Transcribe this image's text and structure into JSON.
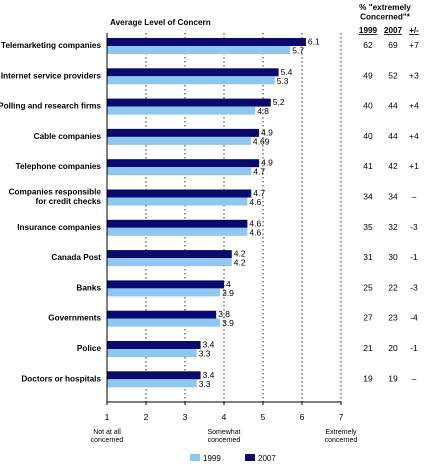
{
  "chart_data": {
    "type": "bar",
    "orientation": "horizontal",
    "title": "Average Level of Concern",
    "categories": [
      [
        "Telemarketing companies"
      ],
      [
        "Internet service providers"
      ],
      [
        "Polling and research firms"
      ],
      [
        "Cable companies"
      ],
      [
        "Telephone companies"
      ],
      [
        "Companies responsible",
        "for credit checks"
      ],
      [
        "Insurance companies"
      ],
      [
        "Canada Post"
      ],
      [
        "Banks"
      ],
      [
        "Governments"
      ],
      [
        "Police"
      ],
      [
        "Doctors or hospitals"
      ]
    ],
    "series": [
      {
        "name": "2007",
        "color": "#0a0a6e",
        "values": [
          6.1,
          5.4,
          5.2,
          4.9,
          4.9,
          4.7,
          4.6,
          4.2,
          4,
          3.8,
          3.4,
          3.4
        ],
        "labels": [
          "6.1",
          "5.4",
          "5.2",
          "4.9",
          "4.9",
          "4.7",
          "4.6",
          "4.2",
          "4",
          "3.8",
          "3.4",
          "3.4"
        ]
      },
      {
        "name": "1999",
        "color": "#8ec8f0",
        "values": [
          5.7,
          5.3,
          4.8,
          4.69,
          4.7,
          4.6,
          4.6,
          4.2,
          3.9,
          3.9,
          3.3,
          3.3
        ],
        "labels": [
          "5.7",
          "5.3",
          "4.8",
          "4.69",
          "4.7",
          "4.6",
          "4.6",
          "4.2",
          "3.9",
          "3.9",
          "3.3",
          "3.3"
        ]
      }
    ],
    "xlim": [
      1,
      7
    ],
    "xticks": [
      "1",
      "2",
      "3",
      "4",
      "5",
      "6",
      "7"
    ],
    "anchors": [
      {
        "at": 1,
        "lines": [
          "Not at all",
          "concerned"
        ]
      },
      {
        "at": 4,
        "lines": [
          "Somewhat",
          "concerned"
        ]
      },
      {
        "at": 7,
        "lines": [
          "Extremely",
          "concerned"
        ]
      }
    ],
    "legend": [
      "1999",
      "2007"
    ],
    "table": {
      "header_lines": [
        "% \"extremely",
        "Concerned\"*"
      ],
      "columns": [
        "1999",
        "2007",
        "+/-"
      ],
      "rows": [
        [
          "62",
          "69",
          "+7"
        ],
        [
          "49",
          "52",
          "+3"
        ],
        [
          "40",
          "44",
          "+4"
        ],
        [
          "40",
          "44",
          "+4"
        ],
        [
          "41",
          "42",
          "+1"
        ],
        [
          "34",
          "34",
          "–"
        ],
        [
          "35",
          "32",
          "-3"
        ],
        [
          "31",
          "30",
          "-1"
        ],
        [
          "25",
          "22",
          "-3"
        ],
        [
          "27",
          "23",
          "-4"
        ],
        [
          "21",
          "20",
          "-1"
        ],
        [
          "19",
          "19",
          "–"
        ]
      ]
    }
  }
}
